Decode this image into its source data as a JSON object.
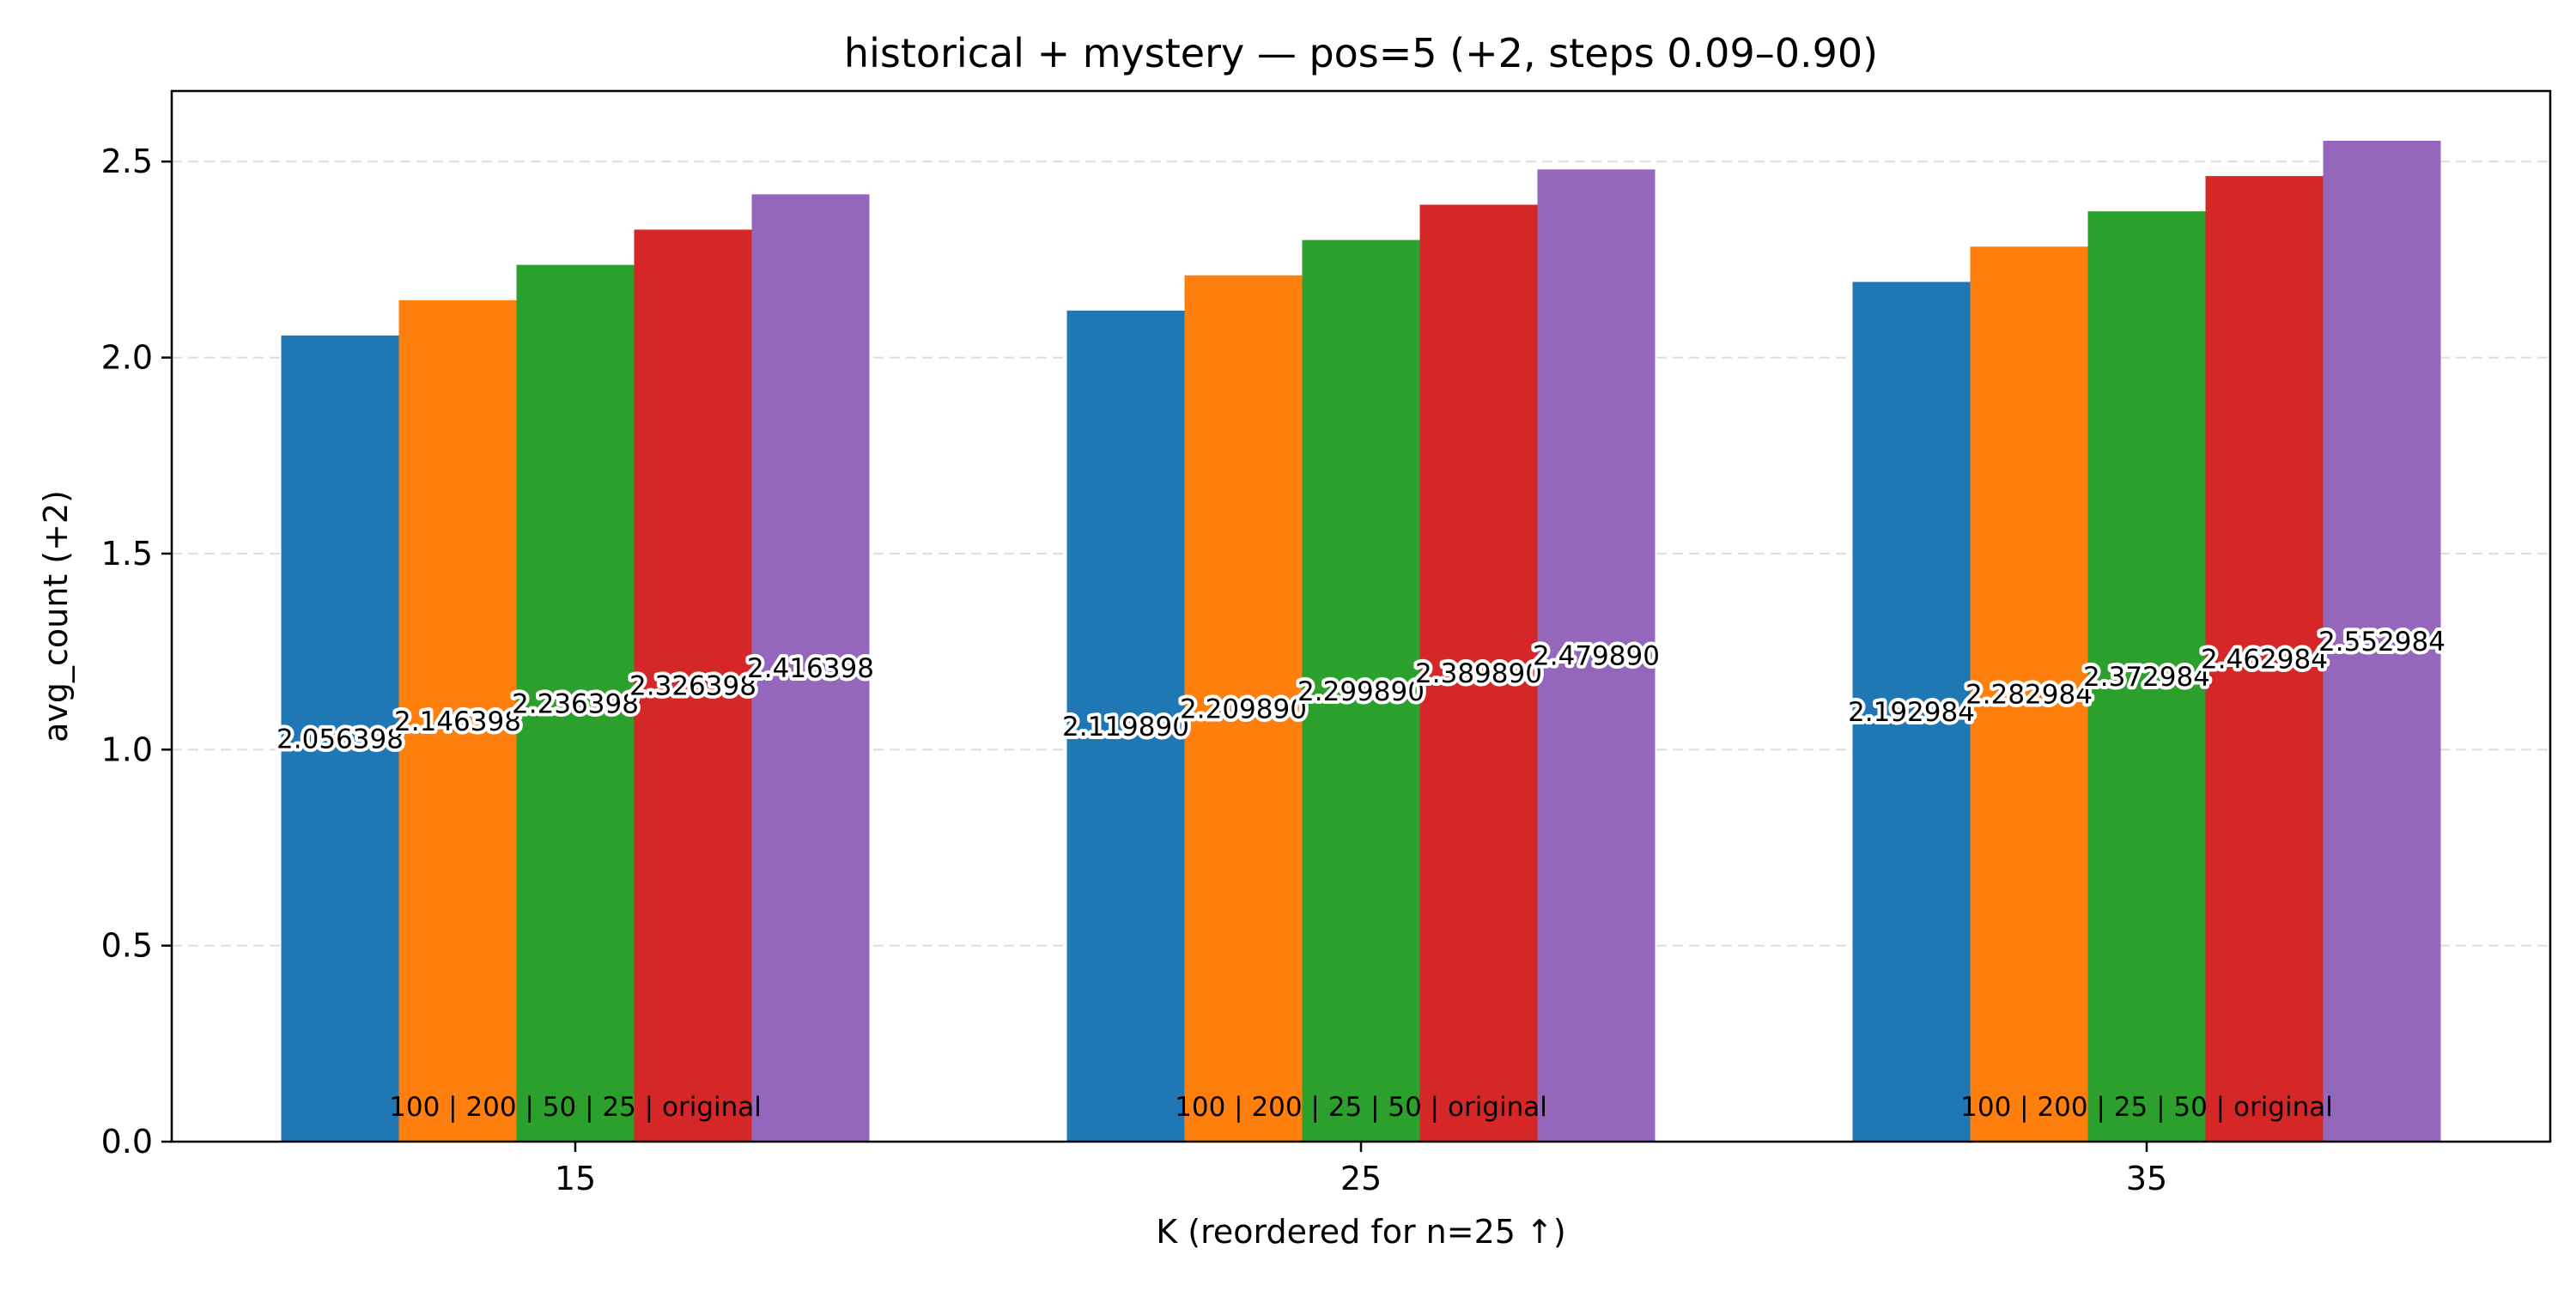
{
  "chart_data": {
    "type": "bar",
    "title": "historical + mystery — pos=5 (+2, steps 0.09–0.90)",
    "xlabel": "K (reordered for n=25 ↑)",
    "ylabel": "avg_count (+2)",
    "categories": [
      "15",
      "25",
      "35"
    ],
    "ylim": [
      0,
      2.68
    ],
    "yticks": [
      "0.0",
      "0.5",
      "1.0",
      "1.5",
      "2.0",
      "2.5"
    ],
    "grid": "horizontal dashed",
    "legend": "none",
    "group_labels": [
      "100 | 200 | 50 | 25 | original",
      "100 | 200 | 25 | 50 | original",
      "100 | 200 | 25 | 50 | original"
    ],
    "series": [
      {
        "color": "#1f77b4",
        "values": [
          2.056398,
          2.11989,
          2.192984
        ],
        "labels": [
          "2.056398",
          "2.119890",
          "2.192984"
        ]
      },
      {
        "color": "#ff7f0e",
        "values": [
          2.146398,
          2.20989,
          2.282984
        ],
        "labels": [
          "2.146398",
          "2.209890",
          "2.282984"
        ]
      },
      {
        "color": "#2ca02c",
        "values": [
          2.236398,
          2.29989,
          2.372984
        ],
        "labels": [
          "2.236398",
          "2.299890",
          "2.372984"
        ]
      },
      {
        "color": "#d62728",
        "values": [
          2.326398,
          2.38989,
          2.462984
        ],
        "labels": [
          "2.326398",
          "2.389890",
          "2.462984"
        ]
      },
      {
        "color": "#9467bd",
        "values": [
          2.416398,
          2.47989,
          2.552984
        ],
        "labels": [
          "2.416398",
          "2.479890",
          "2.552984"
        ]
      }
    ]
  }
}
